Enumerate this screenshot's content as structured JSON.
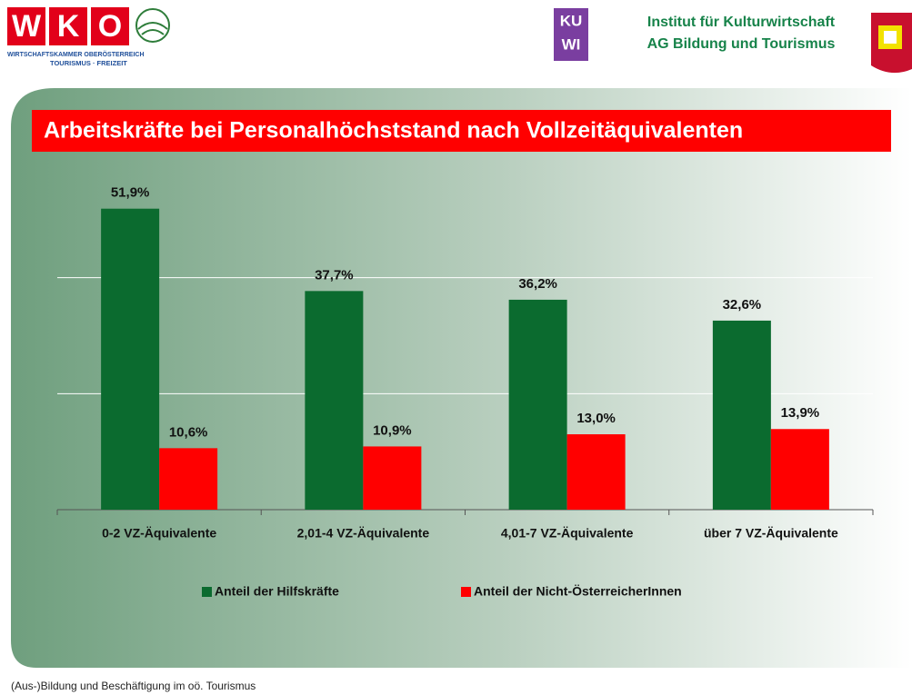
{
  "header": {
    "logo_letters": [
      "W",
      "K",
      "O"
    ],
    "logo_line1": "WIRTSCHAFTSKAMMER OBERÖSTERREICH",
    "logo_line2": "TOURISMUS · FREIZEIT",
    "kuwi_top": "KU",
    "kuwi_bottom": "WI",
    "institute_line1": "Institut für Kulturwirtschaft",
    "institute_line2": "AG Bildung und Tourismus"
  },
  "footer": "(Aus-)Bildung und Beschäftigung im oö. Tourismus",
  "chart_data": {
    "type": "bar",
    "title": "Arbeitskräfte bei Personalhöchststand nach Vollzeitäquivalenten",
    "categories": [
      "0-2 VZ-Äquivalente",
      "2,01-4 VZ-Äquivalente",
      "4,01-7 VZ-Äquivalente",
      "über 7 VZ-Äquivalente"
    ],
    "series": [
      {
        "name": "Anteil der Hilfskräfte",
        "color": "#0b6b2f",
        "values": [
          51.9,
          37.7,
          36.2,
          32.6
        ],
        "value_labels": [
          "51,9%",
          "37,7%",
          "36,2%",
          "32,6%"
        ]
      },
      {
        "name": "Anteil der Nicht-ÖsterreicherInnen",
        "color": "#ff0000",
        "values": [
          10.6,
          10.9,
          13.0,
          13.9
        ],
        "value_labels": [
          "10,6%",
          "10,9%",
          "13,0%",
          "13,9%"
        ]
      }
    ],
    "ylim": [
      0,
      60
    ],
    "yticks": [
      0,
      20,
      40
    ],
    "grid": true,
    "legend": "bottom"
  }
}
